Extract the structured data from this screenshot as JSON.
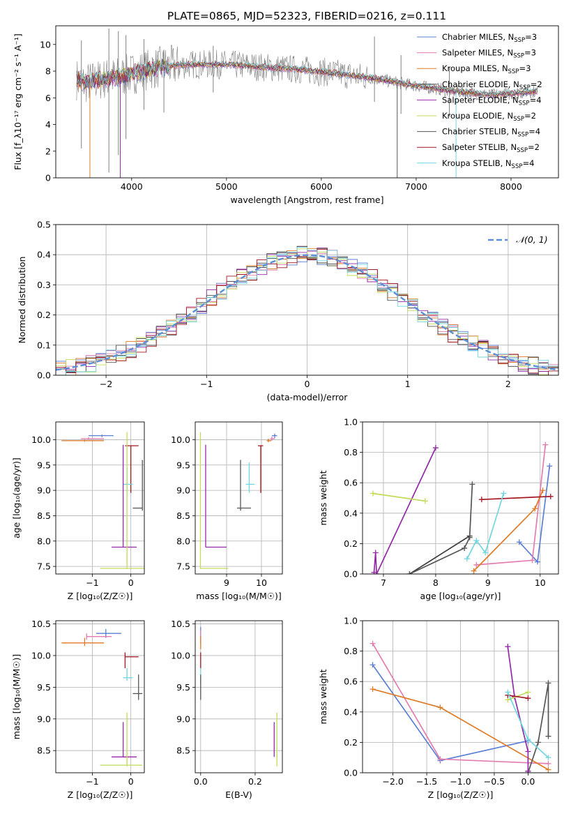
{
  "figure": {
    "title": "PLATE=0865, MJD=52323, FIBERID=0216, z=0.111"
  },
  "colors": {
    "chabrier_miles": "#5b7fd6",
    "salpeter_miles": "#e47cb0",
    "kroupa_miles": "#df7a26",
    "chabrier_elodie": "#3d3d3d",
    "salpeter_elodie": "#9429a8",
    "kroupa_elodie": "#c2dc5a",
    "chabrier_stelib": "#555555",
    "salpeter_stelib": "#a31622",
    "kroupa_stelib": "#72d6e0"
  },
  "chart_data": [
    {
      "id": "spectrum",
      "type": "line",
      "xlabel": "wavelength [Angstrom, rest frame]",
      "ylabel": "Flux [f_λ10⁻¹⁷ erg cm⁻² s⁻¹ A⁻¹]",
      "xlim": [
        3200,
        8500
      ],
      "ylim": [
        0,
        11.4
      ],
      "xticks": [
        "4000",
        "5000",
        "6000",
        "7000",
        "8000"
      ],
      "xtick_values": [
        4000,
        5000,
        6000,
        7000,
        8000
      ],
      "yticks": [
        "0",
        "2",
        "4",
        "6",
        "8",
        "10"
      ],
      "ytick_values": [
        0,
        2,
        4,
        6,
        8,
        10
      ],
      "grid": false,
      "legend_position": "top-right",
      "legend": [
        {
          "label": "Chabrier MILES, N",
          "sub": "SSP",
          "eq": "=3",
          "color": "#5b7fd6"
        },
        {
          "label": "Salpeter MILES, N",
          "sub": "SSP",
          "eq": "=3",
          "color": "#e47cb0"
        },
        {
          "label": "Kroupa MILES, N",
          "sub": "SSP",
          "eq": "=3",
          "color": "#df7a26"
        },
        {
          "label": "Chabrier ELODIE, N",
          "sub": "SSP",
          "eq": "=2",
          "color": "#3d3d3d"
        },
        {
          "label": "Salpeter ELODIE, N",
          "sub": "SSP",
          "eq": "=4",
          "color": "#9429a8"
        },
        {
          "label": "Kroupa ELODIE, N",
          "sub": "SSP",
          "eq": "=2",
          "color": "#c2dc5a"
        },
        {
          "label": "Chabrier STELIB, N",
          "sub": "SSP",
          "eq": "=4",
          "color": "#555555"
        },
        {
          "label": "Salpeter STELIB, N",
          "sub": "SSP",
          "eq": "=2",
          "color": "#a31622"
        },
        {
          "label": "Kroupa STELIB, N",
          "sub": "SSP",
          "eq": "=4",
          "color": "#72d6e0"
        }
      ],
      "data_range": [
        3420,
        8280
      ],
      "model_continuum": {
        "x": [
          3420,
          3500,
          3700,
          3900,
          4100,
          4300,
          4600,
          5000,
          5400,
          5800,
          6200,
          6600,
          7000,
          7400,
          7800,
          8280
        ],
        "y": [
          7.4,
          7.1,
          7.4,
          7.6,
          8.0,
          8.3,
          8.5,
          8.5,
          8.3,
          8.1,
          7.8,
          7.4,
          6.9,
          6.5,
          6.2,
          6.5
        ]
      },
      "data_spikes": [
        {
          "x": 3470,
          "low": 2.2,
          "high": 10.3
        },
        {
          "x": 3760,
          "low": 0.4,
          "high": 11.2
        },
        {
          "x": 3860,
          "low": 1.7,
          "high": 11.0
        },
        {
          "x": 3940,
          "low": 2.9,
          "high": 10.7
        },
        {
          "x": 4130,
          "low": 5.1,
          "high": 10.4
        },
        {
          "x": 4340,
          "low": 4.9,
          "high": 9.6
        },
        {
          "x": 4860,
          "low": 6.4,
          "high": 9.9
        },
        {
          "x": 6560,
          "low": 5.7,
          "high": 10.6
        },
        {
          "x": 6840,
          "low": 4.8,
          "high": 9.2
        },
        {
          "x": 7350,
          "low": 4.6,
          "high": 8.3
        }
      ],
      "model_drops": [
        {
          "x": 3560,
          "to": 0.0
        },
        {
          "x": 3880,
          "to": 0.0
        },
        {
          "x": 6800,
          "to": 0.0
        },
        {
          "x": 7420,
          "to": 0.0
        }
      ]
    },
    {
      "id": "residuals",
      "type": "line",
      "xlabel": "(data-model)/error",
      "ylabel": "Normed distribution",
      "xlim": [
        -2.5,
        2.5
      ],
      "ylim": [
        0,
        0.5
      ],
      "xticks": [
        "−2",
        "−1",
        "0",
        "1",
        "2"
      ],
      "xtick_values": [
        -2,
        -1,
        0,
        1,
        2
      ],
      "yticks": [
        "0.0",
        "0.1",
        "0.2",
        "0.3",
        "0.4",
        "0.5"
      ],
      "ytick_values": [
        0,
        0.1,
        0.2,
        0.3,
        0.4,
        0.5
      ],
      "grid": true,
      "legend_position": "top-right",
      "legend": [
        {
          "label": "𝒩(0, 1)",
          "color": "#5b8fd6",
          "style": "dashed"
        }
      ],
      "bin_width": 0.1,
      "gaussian": {
        "mean": 0,
        "sigma": 1
      }
    },
    {
      "id": "age_vs_z",
      "type": "scatter",
      "xlabel": "Z [log₁₀(Z/Z☉)]",
      "ylabel": "age  [log₁₀(age/yr)]",
      "xlim": [
        -1.95,
        0.35
      ],
      "ylim": [
        7.35,
        10.35
      ],
      "xticks": [
        "−1",
        "0"
      ],
      "xtick_values": [
        -1,
        0
      ],
      "yticks": [
        "7.5",
        "8.0",
        "8.5",
        "9.0",
        "9.5",
        "10.0"
      ],
      "ytick_values": [
        7.5,
        8.0,
        8.5,
        9.0,
        9.5,
        10.0
      ],
      "grid": true,
      "points": [
        {
          "x": -0.75,
          "y": 10.08,
          "xlo": -1.1,
          "xhi": -0.45,
          "ylo": 10.05,
          "yhi": 10.1,
          "color": "#5b7fd6"
        },
        {
          "x": -1.1,
          "y": 10.02,
          "xlo": -1.3,
          "xhi": -0.7,
          "ylo": 10.0,
          "yhi": 10.05,
          "color": "#e47cb0"
        },
        {
          "x": -1.2,
          "y": 9.98,
          "xlo": -1.8,
          "xhi": -0.7,
          "ylo": 9.96,
          "yhi": 10.0,
          "color": "#df7a26"
        },
        {
          "x": 0.0,
          "y": 9.88,
          "xlo": -0.15,
          "xhi": 0.2,
          "ylo": 8.95,
          "yhi": 9.88,
          "color": "#a31622"
        },
        {
          "x": -0.1,
          "y": 9.12,
          "xlo": -0.2,
          "xhi": 0.05,
          "ylo": 8.95,
          "yhi": 9.45,
          "color": "#72d6e0"
        },
        {
          "x": 0.3,
          "y": 8.65,
          "xlo": 0.05,
          "xhi": 0.3,
          "ylo": 8.6,
          "yhi": 9.6,
          "color": "#555555"
        },
        {
          "x": -0.2,
          "y": 7.88,
          "xlo": -0.5,
          "xhi": 0.15,
          "ylo": 7.88,
          "yhi": 9.9,
          "color": "#9429a8"
        },
        {
          "x": -0.1,
          "y": 7.46,
          "xlo": -0.8,
          "xhi": 0.35,
          "ylo": 7.45,
          "yhi": 10.15,
          "color": "#c2dc5a"
        }
      ]
    },
    {
      "id": "age_vs_mass",
      "type": "scatter",
      "xlabel": "mass [log₁₀(M/M☉)]",
      "ylabel": "",
      "xlim": [
        8.1,
        10.6
      ],
      "ylim": [
        7.35,
        10.35
      ],
      "xticks": [
        "9",
        "10"
      ],
      "xtick_values": [
        9,
        10
      ],
      "yticks": [
        "7.5",
        "8.0",
        "8.5",
        "9.0",
        "9.5",
        "10.0"
      ],
      "ytick_values": [
        7.5,
        8.0,
        8.5,
        9.0,
        9.5,
        10.0
      ],
      "grid": true,
      "points": [
        {
          "x": 10.38,
          "y": 10.08,
          "xlo": 10.3,
          "xhi": 10.45,
          "ylo": 10.03,
          "yhi": 10.12,
          "color": "#5b7fd6"
        },
        {
          "x": 10.3,
          "y": 10.02,
          "xlo": 10.25,
          "xhi": 10.38,
          "ylo": 9.98,
          "yhi": 10.06,
          "color": "#e47cb0"
        },
        {
          "x": 10.2,
          "y": 9.98,
          "xlo": 10.15,
          "xhi": 10.28,
          "ylo": 9.95,
          "yhi": 10.02,
          "color": "#df7a26"
        },
        {
          "x": 9.98,
          "y": 9.88,
          "xlo": 9.9,
          "xhi": 10.05,
          "ylo": 8.95,
          "yhi": 9.88,
          "color": "#a31622"
        },
        {
          "x": 9.65,
          "y": 9.12,
          "xlo": 9.55,
          "xhi": 9.8,
          "ylo": 8.95,
          "yhi": 9.55,
          "color": "#72d6e0"
        },
        {
          "x": 9.4,
          "y": 8.65,
          "xlo": 9.3,
          "xhi": 9.7,
          "ylo": 8.6,
          "yhi": 9.6,
          "color": "#555555"
        },
        {
          "x": 8.4,
          "y": 7.88,
          "xlo": 8.4,
          "xhi": 9.0,
          "ylo": 7.88,
          "yhi": 9.9,
          "color": "#9429a8"
        },
        {
          "x": 8.25,
          "y": 7.46,
          "xlo": 8.25,
          "xhi": 9.05,
          "ylo": 7.45,
          "yhi": 10.15,
          "color": "#c2dc5a"
        }
      ]
    },
    {
      "id": "weight_vs_age",
      "type": "line",
      "xlabel": "age  [log₁₀(age/yr)]",
      "ylabel": "mass weight",
      "xlim": [
        6.6,
        10.35
      ],
      "ylim": [
        0,
        1.0
      ],
      "xticks": [
        "7",
        "8",
        "9",
        "10"
      ],
      "xtick_values": [
        7,
        8,
        9,
        10
      ],
      "yticks": [
        "0.0",
        "0.2",
        "0.4",
        "0.6",
        "0.8",
        "1.0"
      ],
      "ytick_values": [
        0,
        0.2,
        0.4,
        0.6,
        0.8,
        1.0
      ],
      "grid": true,
      "series": [
        {
          "color": "#5b7fd6",
          "x": [
            9.6,
            9.95,
            10.18
          ],
          "y": [
            0.21,
            0.08,
            0.71
          ]
        },
        {
          "color": "#e47cb0",
          "x": [
            8.78,
            9.85,
            10.1
          ],
          "y": [
            0.06,
            0.09,
            0.85
          ]
        },
        {
          "color": "#df7a26",
          "x": [
            8.73,
            9.9,
            10.05
          ],
          "y": [
            0.02,
            0.43,
            0.55
          ]
        },
        {
          "color": "#3d3d3d",
          "x": [
            7.5,
            8.65
          ],
          "y": [
            0.0,
            0.25
          ]
        },
        {
          "color": "#555555",
          "x": [
            7.5,
            8.55,
            8.65,
            8.7
          ],
          "y": [
            0.0,
            0.17,
            0.24,
            0.59
          ]
        },
        {
          "color": "#9429a8",
          "x": [
            6.82,
            6.85,
            6.87,
            8.0
          ],
          "y": [
            0.01,
            0.14,
            0.0,
            0.83
          ]
        },
        {
          "color": "#c2dc5a",
          "x": [
            6.8,
            7.8
          ],
          "y": [
            0.53,
            0.48
          ]
        },
        {
          "color": "#a31622",
          "x": [
            8.88,
            10.2
          ],
          "y": [
            0.49,
            0.51
          ]
        },
        {
          "color": "#72d6e0",
          "x": [
            8.6,
            8.78,
            8.95,
            9.3
          ],
          "y": [
            0.1,
            0.22,
            0.14,
            0.53
          ]
        }
      ]
    },
    {
      "id": "mass_vs_z",
      "type": "scatter",
      "xlabel": "Z [log₁₀(Z/Z☉)]",
      "ylabel": "mass [log₁₀(M/M☉)]",
      "xlim": [
        -1.95,
        0.35
      ],
      "ylim": [
        8.15,
        10.55
      ],
      "xticks": [
        "−1",
        "0"
      ],
      "xtick_values": [
        -1,
        0
      ],
      "yticks": [
        "8.5",
        "9.0",
        "9.5",
        "10.0",
        "10.5"
      ],
      "ytick_values": [
        8.5,
        9.0,
        9.5,
        10.0,
        10.5
      ],
      "grid": true,
      "points": [
        {
          "x": -0.65,
          "y": 10.35,
          "xlo": -0.9,
          "xhi": -0.25,
          "ylo": 10.28,
          "yhi": 10.42,
          "color": "#5b7fd6"
        },
        {
          "x": -1.15,
          "y": 10.3,
          "xlo": -1.15,
          "xhi": -0.5,
          "ylo": 10.25,
          "yhi": 10.35,
          "color": "#e47cb0"
        },
        {
          "x": -1.2,
          "y": 10.2,
          "xlo": -1.8,
          "xhi": -0.7,
          "ylo": 10.15,
          "yhi": 10.28,
          "color": "#df7a26"
        },
        {
          "x": -0.15,
          "y": 9.98,
          "xlo": -0.15,
          "xhi": 0.2,
          "ylo": 9.8,
          "yhi": 10.05,
          "color": "#a31622"
        },
        {
          "x": -0.1,
          "y": 9.65,
          "xlo": -0.2,
          "xhi": 0.05,
          "ylo": 9.6,
          "yhi": 9.8,
          "color": "#72d6e0"
        },
        {
          "x": 0.2,
          "y": 9.4,
          "xlo": 0.05,
          "xhi": 0.3,
          "ylo": 9.3,
          "yhi": 9.7,
          "color": "#555555"
        },
        {
          "x": -0.2,
          "y": 8.4,
          "xlo": -0.5,
          "xhi": 0.15,
          "ylo": 8.4,
          "yhi": 8.95,
          "color": "#9429a8"
        },
        {
          "x": -0.1,
          "y": 8.27,
          "xlo": -0.8,
          "xhi": 0.3,
          "ylo": 8.25,
          "yhi": 9.1,
          "color": "#c2dc5a"
        }
      ]
    },
    {
      "id": "mass_vs_ebv",
      "type": "scatter",
      "xlabel": "E(B-V)",
      "ylabel": "",
      "xlim": [
        -0.02,
        0.3
      ],
      "ylim": [
        8.15,
        10.55
      ],
      "xticks": [
        "0.0",
        "0.2"
      ],
      "xtick_values": [
        0.0,
        0.2
      ],
      "yticks": [
        "8.5",
        "9.0",
        "9.5",
        "10.0",
        "10.5"
      ],
      "ytick_values": [
        8.5,
        9.0,
        9.5,
        10.0,
        10.5
      ],
      "grid": true,
      "points": [
        {
          "x": 0.0,
          "y": 10.35,
          "xlo": 0.0,
          "xhi": 0.0,
          "ylo": 10.2,
          "yhi": 10.45,
          "color": "#5b7fd6"
        },
        {
          "x": 0.0,
          "y": 10.3,
          "xlo": 0.0,
          "xhi": 0.0,
          "ylo": 10.2,
          "yhi": 10.4,
          "color": "#e47cb0"
        },
        {
          "x": 0.0,
          "y": 10.2,
          "xlo": 0.0,
          "xhi": 0.0,
          "ylo": 10.1,
          "yhi": 10.3,
          "color": "#df7a26"
        },
        {
          "x": 0.0,
          "y": 9.98,
          "xlo": 0.0,
          "xhi": 0.0,
          "ylo": 9.8,
          "yhi": 10.05,
          "color": "#a31622"
        },
        {
          "x": 0.0,
          "y": 9.65,
          "xlo": 0.0,
          "xhi": 0.0,
          "ylo": 9.55,
          "yhi": 9.8,
          "color": "#72d6e0"
        },
        {
          "x": 0.0,
          "y": 9.4,
          "xlo": 0.0,
          "xhi": 0.0,
          "ylo": 9.3,
          "yhi": 9.7,
          "color": "#555555"
        },
        {
          "x": 0.27,
          "y": 8.4,
          "xlo": 0.27,
          "xhi": 0.27,
          "ylo": 8.4,
          "yhi": 8.95,
          "color": "#9429a8"
        },
        {
          "x": 0.28,
          "y": 8.27,
          "xlo": 0.28,
          "xhi": 0.28,
          "ylo": 8.25,
          "yhi": 9.1,
          "color": "#c2dc5a"
        }
      ]
    },
    {
      "id": "weight_vs_z",
      "type": "line",
      "xlabel": "Z [log₁₀(Z/Z☉)]",
      "ylabel": "mass weight",
      "xlim": [
        -2.45,
        0.45
      ],
      "ylim": [
        0,
        1.0
      ],
      "xticks": [
        "−2.0",
        "−1.5",
        "−1.0",
        "−0.5",
        "0.0"
      ],
      "xtick_values": [
        -2.0,
        -1.5,
        -1.0,
        -0.5,
        0.0
      ],
      "yticks": [
        "0.0",
        "0.2",
        "0.4",
        "0.6",
        "0.8",
        "1.0"
      ],
      "ytick_values": [
        0,
        0.2,
        0.4,
        0.6,
        0.8,
        1.0
      ],
      "grid": true,
      "series": [
        {
          "color": "#5b7fd6",
          "x": [
            -2.3,
            -1.3,
            0.0
          ],
          "y": [
            0.71,
            0.08,
            0.21
          ]
        },
        {
          "color": "#e47cb0",
          "x": [
            -2.3,
            -1.3,
            0.3
          ],
          "y": [
            0.85,
            0.09,
            0.06
          ]
        },
        {
          "color": "#df7a26",
          "x": [
            -2.3,
            -1.3,
            0.3
          ],
          "y": [
            0.55,
            0.43,
            0.02
          ]
        },
        {
          "color": "#555555",
          "x": [
            0.0,
            0.0,
            0.15,
            0.3,
            0.3
          ],
          "y": [
            0.01,
            0.0,
            0.2,
            0.59,
            0.24
          ]
        },
        {
          "color": "#9429a8",
          "x": [
            -0.3,
            -0.2,
            0.0,
            0.0
          ],
          "y": [
            0.83,
            0.5,
            0.14,
            0.01
          ]
        },
        {
          "color": "#c2dc5a",
          "x": [
            -0.3,
            0.0
          ],
          "y": [
            0.48,
            0.53
          ]
        },
        {
          "color": "#a31622",
          "x": [
            -0.3,
            0.0
          ],
          "y": [
            0.51,
            0.49
          ]
        },
        {
          "color": "#72d6e0",
          "x": [
            -0.3,
            0.0,
            0.3
          ],
          "y": [
            0.53,
            0.22,
            0.1
          ]
        }
      ]
    }
  ]
}
